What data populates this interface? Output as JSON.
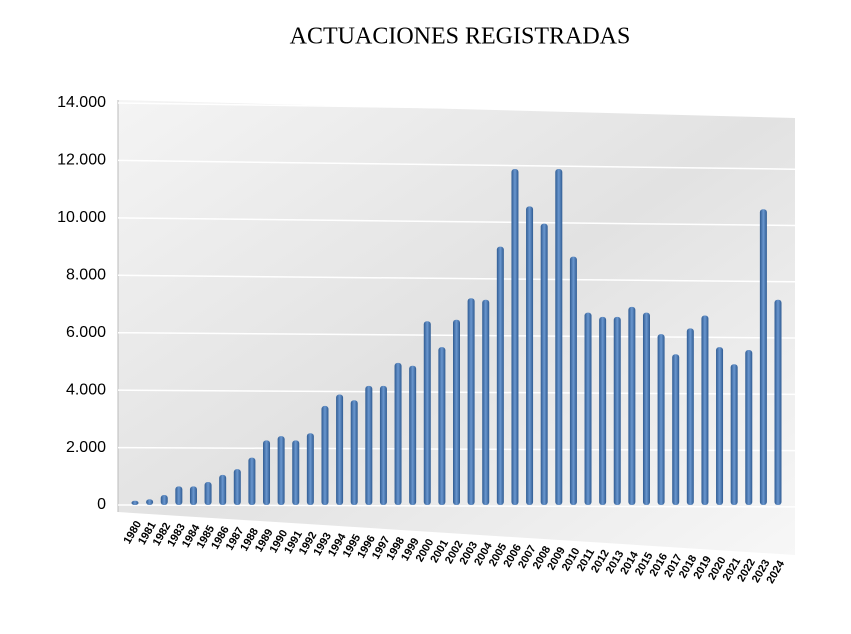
{
  "chart_data": {
    "type": "bar",
    "title": "ACTUACIONES REGISTRADAS",
    "categories": [
      "1980",
      "1981",
      "1982",
      "1983",
      "1984",
      "1985",
      "1986",
      "1987",
      "1988",
      "1989",
      "1990",
      "1991",
      "1992",
      "1993",
      "1994",
      "1995",
      "1996",
      "1997",
      "1998",
      "1999",
      "2000",
      "2001",
      "2002",
      "2003",
      "2004",
      "2005",
      "2006",
      "2007",
      "2008",
      "2009",
      "2010",
      "2011",
      "2012",
      "2013",
      "2014",
      "2015",
      "2016",
      "2017",
      "2018",
      "2019",
      "2020",
      "2021",
      "2022",
      "2023",
      "2024"
    ],
    "values": [
      150,
      200,
      350,
      650,
      650,
      800,
      1050,
      1250,
      1650,
      2250,
      2400,
      2250,
      2500,
      3450,
      3850,
      3650,
      4150,
      4150,
      4950,
      4850,
      6400,
      5500,
      6450,
      7200,
      7150,
      9000,
      11700,
      10400,
      9800,
      11700,
      8650,
      6700,
      6550,
      6550,
      6900,
      6700,
      5950,
      5250,
      6150,
      6600,
      5500,
      4900,
      5400,
      10300,
      7150
    ],
    "color": "#4a7ab5",
    "ylim": [
      0,
      14000
    ],
    "yticks": [
      0,
      {
        "value": 2000,
        "label": "2.000"
      },
      {
        "value": 4000,
        "label": "4.000"
      },
      {
        "value": 6000,
        "label": "6.000"
      },
      {
        "value": 8000,
        "label": "8.000"
      },
      {
        "value": 10000,
        "label": "10.000"
      },
      {
        "value": 12000,
        "label": "12.000"
      },
      {
        "value": 14000,
        "label": "14.000"
      }
    ],
    "grid": true
  }
}
